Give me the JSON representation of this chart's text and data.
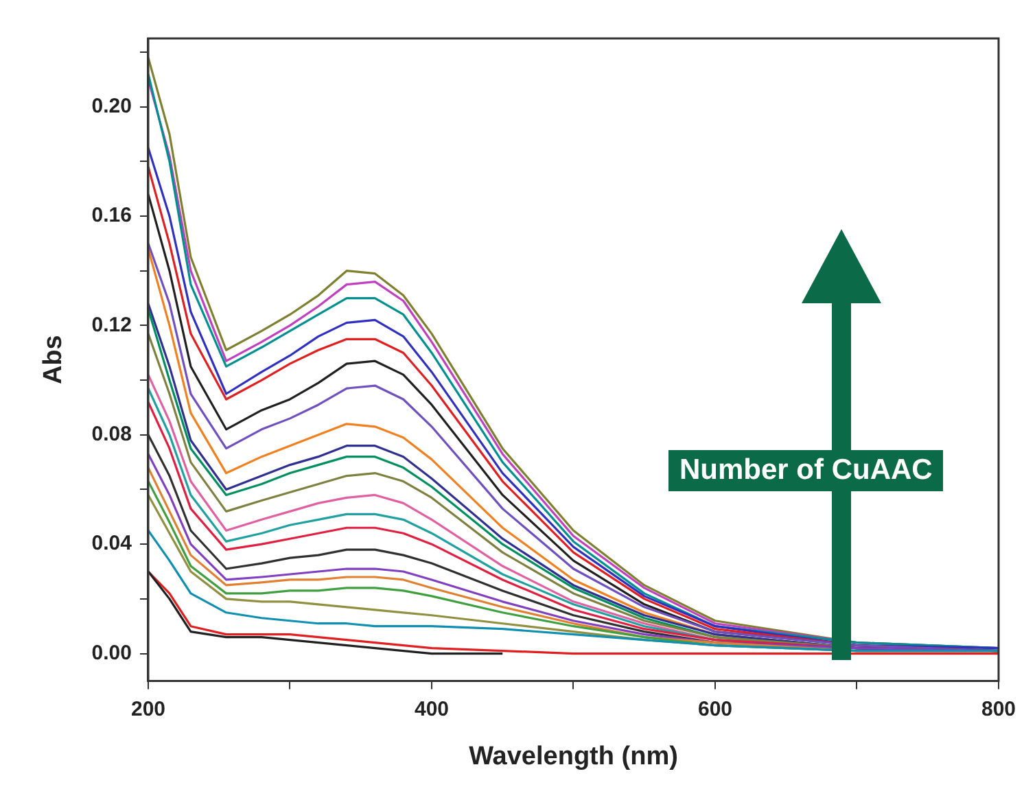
{
  "chart_data": {
    "type": "line",
    "xlabel": "Wavelength (nm)",
    "ylabel": "Abs",
    "x": [
      200,
      215,
      230,
      255,
      280,
      300,
      320,
      340,
      360,
      380,
      400,
      450,
      500,
      550,
      600,
      700,
      800
    ],
    "xlim": [
      200,
      800
    ],
    "xticks": [
      200,
      {
        "value": 300,
        "label": null
      },
      400,
      {
        "value": 500,
        "label": null
      },
      600,
      {
        "value": 700,
        "label": null
      },
      800
    ],
    "ylim": [
      -0.01,
      0.225
    ],
    "yticks": [
      {
        "value": 0,
        "label": "0.00"
      },
      {
        "value": 0.02,
        "label": null
      },
      {
        "value": 0.04,
        "label": "0.04"
      },
      {
        "value": 0.06,
        "label": null
      },
      {
        "value": 0.08,
        "label": "0.08"
      },
      {
        "value": 0.1,
        "label": null
      },
      {
        "value": 0.12,
        "label": "0.12"
      },
      {
        "value": 0.14,
        "label": null
      },
      {
        "value": 0.16,
        "label": "0.16"
      },
      {
        "value": 0.18,
        "label": null
      },
      {
        "value": 0.2,
        "label": "0.20"
      },
      {
        "value": 0.22,
        "label": null
      }
    ],
    "grid": false,
    "legend": false,
    "marker": "none",
    "line_style": "solid",
    "annotations": [
      "Number of CuAAC"
    ],
    "series": [
      {
        "color": "#7f7f30",
        "values": [
          0.218,
          0.19,
          0.145,
          0.111,
          0.118,
          0.124,
          0.131,
          0.14,
          0.139,
          0.131,
          0.117,
          0.075,
          0.045,
          0.025,
          0.012,
          0.004,
          0.002
        ]
      },
      {
        "color": "#c040c0",
        "values": [
          0.21,
          0.182,
          0.14,
          0.107,
          0.114,
          0.12,
          0.127,
          0.135,
          0.136,
          0.129,
          0.114,
          0.073,
          0.043,
          0.024,
          0.011,
          0.004,
          0.002
        ]
      },
      {
        "color": "#009090",
        "values": [
          0.212,
          0.18,
          0.135,
          0.105,
          0.112,
          0.118,
          0.124,
          0.13,
          0.13,
          0.124,
          0.11,
          0.07,
          0.041,
          0.022,
          0.01,
          0.004,
          0.002
        ]
      },
      {
        "color": "#3030c0",
        "values": [
          0.185,
          0.16,
          0.125,
          0.095,
          0.103,
          0.109,
          0.116,
          0.121,
          0.122,
          0.116,
          0.103,
          0.066,
          0.039,
          0.021,
          0.01,
          0.003,
          0.002
        ]
      },
      {
        "color": "#e02020",
        "values": [
          0.178,
          0.15,
          0.117,
          0.093,
          0.1,
          0.106,
          0.111,
          0.115,
          0.115,
          0.11,
          0.098,
          0.063,
          0.037,
          0.02,
          0.009,
          0.003,
          0.001
        ]
      },
      {
        "color": "#202020",
        "values": [
          0.168,
          0.14,
          0.105,
          0.082,
          0.089,
          0.093,
          0.099,
          0.106,
          0.107,
          0.102,
          0.091,
          0.058,
          0.034,
          0.018,
          0.008,
          0.003,
          0.001
        ]
      },
      {
        "color": "#7050c0",
        "values": [
          0.15,
          0.128,
          0.095,
          0.075,
          0.082,
          0.086,
          0.091,
          0.097,
          0.098,
          0.093,
          0.083,
          0.053,
          0.031,
          0.017,
          0.008,
          0.003,
          0.001
        ]
      },
      {
        "color": "#f08020",
        "values": [
          0.148,
          0.12,
          0.088,
          0.066,
          0.072,
          0.076,
          0.08,
          0.084,
          0.083,
          0.079,
          0.071,
          0.046,
          0.027,
          0.015,
          0.007,
          0.002,
          0.001
        ]
      },
      {
        "color": "#303090",
        "values": [
          0.128,
          0.105,
          0.078,
          0.06,
          0.065,
          0.069,
          0.072,
          0.076,
          0.076,
          0.072,
          0.064,
          0.042,
          0.025,
          0.014,
          0.007,
          0.002,
          0.001
        ]
      },
      {
        "color": "#009060",
        "values": [
          0.126,
          0.1,
          0.075,
          0.058,
          0.062,
          0.066,
          0.069,
          0.072,
          0.072,
          0.068,
          0.061,
          0.04,
          0.024,
          0.013,
          0.006,
          0.002,
          0.001
        ]
      },
      {
        "color": "#808040",
        "values": [
          0.117,
          0.095,
          0.07,
          0.052,
          0.056,
          0.059,
          0.062,
          0.065,
          0.066,
          0.063,
          0.057,
          0.037,
          0.022,
          0.012,
          0.006,
          0.002,
          0.001
        ]
      },
      {
        "color": "#e060a0",
        "values": [
          0.102,
          0.085,
          0.063,
          0.045,
          0.049,
          0.052,
          0.055,
          0.057,
          0.058,
          0.055,
          0.049,
          0.032,
          0.019,
          0.011,
          0.005,
          0.002,
          0.001
        ]
      },
      {
        "color": "#20a0a0",
        "values": [
          0.097,
          0.08,
          0.058,
          0.041,
          0.044,
          0.047,
          0.049,
          0.051,
          0.051,
          0.049,
          0.044,
          0.029,
          0.018,
          0.01,
          0.005,
          0.002,
          0.001
        ]
      },
      {
        "color": "#e02040",
        "values": [
          0.092,
          0.075,
          0.053,
          0.038,
          0.04,
          0.042,
          0.044,
          0.046,
          0.046,
          0.044,
          0.04,
          0.027,
          0.016,
          0.009,
          0.005,
          0.002,
          0.001
        ]
      },
      {
        "color": "#303030",
        "values": [
          0.08,
          0.065,
          0.045,
          0.031,
          0.033,
          0.035,
          0.036,
          0.038,
          0.038,
          0.036,
          0.033,
          0.023,
          0.014,
          0.008,
          0.004,
          0.002,
          0.001
        ]
      },
      {
        "color": "#8040c0",
        "values": [
          0.073,
          0.058,
          0.04,
          0.027,
          0.028,
          0.029,
          0.03,
          0.031,
          0.031,
          0.03,
          0.027,
          0.019,
          0.012,
          0.007,
          0.004,
          0.002,
          0.001
        ]
      },
      {
        "color": "#e08030",
        "values": [
          0.068,
          0.052,
          0.036,
          0.025,
          0.026,
          0.027,
          0.027,
          0.028,
          0.028,
          0.027,
          0.024,
          0.017,
          0.011,
          0.006,
          0.004,
          0.001,
          0.001
        ]
      },
      {
        "color": "#40a040",
        "values": [
          0.063,
          0.048,
          0.032,
          0.022,
          0.022,
          0.023,
          0.023,
          0.024,
          0.024,
          0.023,
          0.021,
          0.015,
          0.01,
          0.006,
          0.003,
          0.001,
          0.001
        ]
      },
      {
        "color": "#909040",
        "values": [
          0.058,
          0.044,
          0.03,
          0.02,
          0.019,
          0.019,
          0.018,
          0.017,
          0.016,
          0.015,
          0.014,
          0.011,
          0.008,
          0.005,
          0.003,
          0.001,
          0.001
        ]
      },
      {
        "color": "#1090b0",
        "values": [
          0.045,
          0.034,
          0.022,
          0.015,
          0.013,
          0.012,
          0.011,
          0.011,
          0.01,
          0.01,
          0.01,
          0.009,
          0.007,
          0.005,
          0.003,
          0.001,
          0.001
        ]
      },
      {
        "color": "#e02020",
        "values": [
          0.03,
          0.022,
          0.01,
          0.007,
          0.007,
          0.007,
          0.006,
          0.005,
          0.004,
          0.003,
          0.002,
          0.001,
          0,
          0,
          0,
          0,
          0
        ]
      },
      {
        "color": "#202020",
        "values": [
          0.03,
          0.02,
          0.008,
          0.006,
          0.006,
          0.005,
          0.004,
          0.003,
          0.002,
          0.001,
          0,
          0,
          null,
          null,
          null,
          null,
          null
        ]
      }
    ]
  }
}
